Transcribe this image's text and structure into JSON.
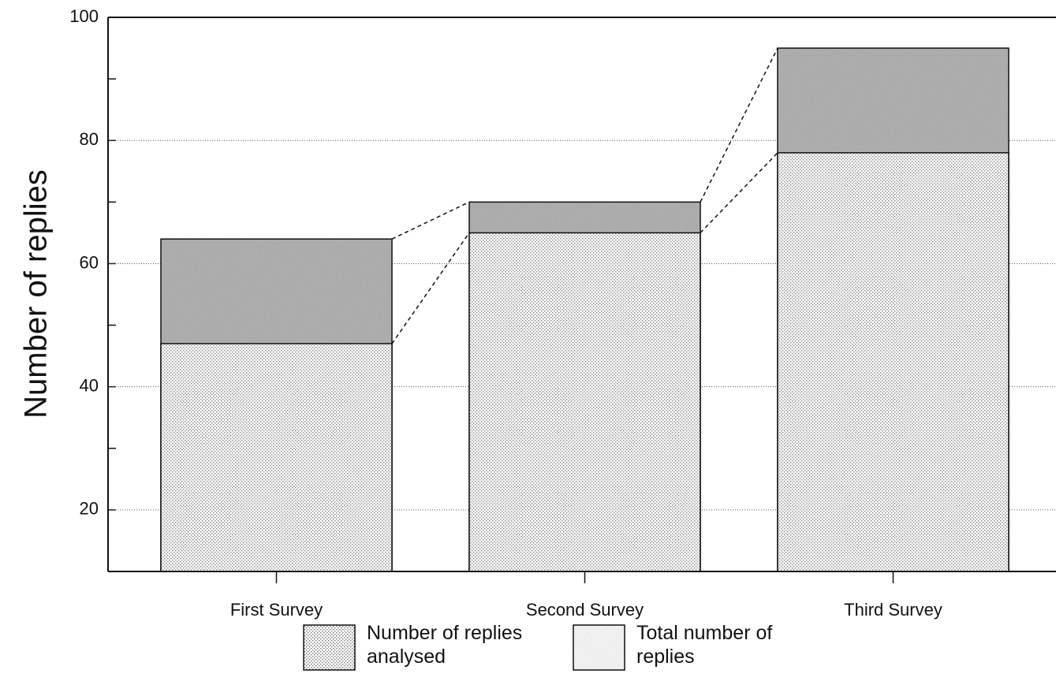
{
  "chart_data": {
    "type": "overlaid_bar",
    "y_axis_label": "Number of replies",
    "categories": [
      "First Survey",
      "Second Survey",
      "Third Survey"
    ],
    "series": [
      {
        "name": "Number of replies analysed",
        "color": "#e6e6e6",
        "values": [
          47,
          65,
          78
        ]
      },
      {
        "name": "Total number of replies",
        "color": "#a8a8a8",
        "values": [
          64,
          70,
          95
        ]
      }
    ],
    "ylim": [
      10,
      100
    ],
    "yticks": [
      20,
      40,
      60,
      80,
      100
    ],
    "yminorticks": [
      30,
      50,
      70,
      90
    ],
    "grid": true,
    "legend": "bottom"
  }
}
